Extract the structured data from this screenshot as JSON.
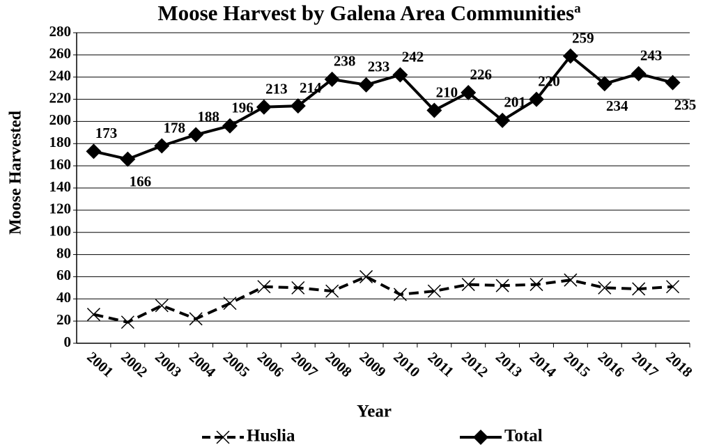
{
  "chart_data": {
    "type": "line",
    "title": "Moose Harvest by Galena Area Communities",
    "title_superscript": "a",
    "x_label": "Year",
    "y_label": "Moose Harvested",
    "categories": [
      "2001",
      "2002",
      "2003",
      "2004",
      "2005",
      "2006",
      "2007",
      "2008",
      "2009",
      "2010",
      "2011",
      "2012",
      "2013",
      "2014",
      "2015",
      "2016",
      "2017",
      "2018"
    ],
    "series": [
      {
        "name": "Huslia",
        "color": "#000000",
        "dash": true,
        "marker": "x",
        "values": [
          26,
          19,
          34,
          22,
          36,
          51,
          50,
          47,
          60,
          44,
          47,
          53,
          52,
          53,
          57,
          50,
          49,
          51
        ]
      },
      {
        "name": "Total",
        "color": "#000000",
        "dash": false,
        "marker": "diamond",
        "data_labels": true,
        "values": [
          173,
          166,
          178,
          188,
          196,
          213,
          214,
          238,
          233,
          242,
          210,
          226,
          201,
          220,
          259,
          234,
          243,
          235
        ]
      }
    ],
    "ylim": [
      0,
      280
    ],
    "yticks": [
      0,
      20,
      40,
      60,
      80,
      100,
      120,
      140,
      160,
      180,
      200,
      220,
      240,
      260,
      280
    ],
    "grid": true,
    "legend": "bottom"
  }
}
